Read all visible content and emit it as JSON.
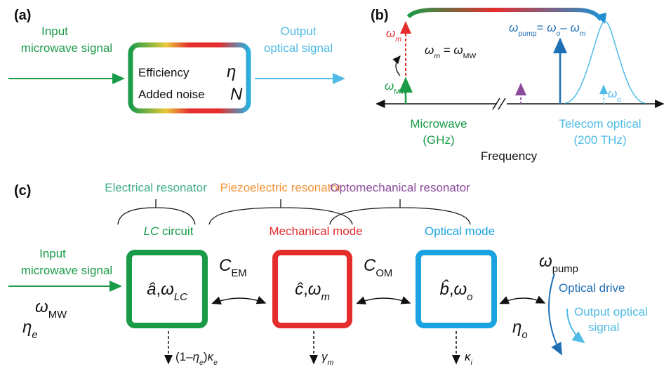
{
  "a": {
    "label": "(a)",
    "input": [
      "Input",
      "microwave signal"
    ],
    "efficiency": "Efficiency",
    "eta": "η",
    "noise": "Added noise",
    "N": "N",
    "output": [
      "Output",
      "optical signal"
    ]
  },
  "b": {
    "label": "(b)",
    "omega_m": [
      {
        "t": "ω",
        "it": true
      },
      {
        "t": "m",
        "sub": true,
        "it": true
      }
    ],
    "eq": [
      {
        "t": "ω",
        "it": true
      },
      {
        "t": "m",
        "sub": true,
        "it": true
      },
      {
        "t": " = "
      },
      {
        "t": "ω",
        "it": true
      },
      {
        "t": "MW",
        "sub": true
      }
    ],
    "omega_mw": [
      {
        "t": "ω",
        "it": true
      },
      {
        "t": "MW",
        "sub": true
      }
    ],
    "pump": [
      {
        "t": "ω",
        "it": true
      },
      {
        "t": "pump",
        "sub": true
      },
      {
        "t": "= "
      },
      {
        "t": "ω",
        "it": true
      },
      {
        "t": "o",
        "sub": true,
        "it": true
      },
      {
        "t": "– "
      },
      {
        "t": "ω",
        "it": true
      },
      {
        "t": "m",
        "sub": true,
        "it": true
      }
    ],
    "omega_o": [
      {
        "t": "ω",
        "it": true
      },
      {
        "t": "o",
        "sub": true,
        "it": true
      }
    ],
    "microwave": [
      "Microwave",
      "(GHz)"
    ],
    "telecom": [
      "Telecom optical",
      "(200 THz)"
    ],
    "frequency": "Frequency"
  },
  "c": {
    "label": "(c)",
    "electrical": "Electrical resonator",
    "piezo": "Piezoelectric resonator",
    "opto": "Optomechanical resonator",
    "lc": [
      {
        "t": "LC",
        "it": true
      },
      {
        "t": " circuit"
      }
    ],
    "mech": "Mechanical mode",
    "optical": "Optical mode",
    "input": [
      "Input",
      "microwave signal"
    ],
    "omega_mw": [
      {
        "t": "ω",
        "it": true
      },
      {
        "t": "MW",
        "sub": true
      }
    ],
    "eta_e": [
      {
        "t": "η",
        "it": true
      },
      {
        "t": "e",
        "sub": true,
        "it": true
      }
    ],
    "box1": [
      {
        "t": "â",
        "it": true
      },
      {
        "t": ","
      },
      {
        "t": "ω",
        "it": true
      },
      {
        "t": "LC",
        "sub": true,
        "it": true
      }
    ],
    "box2": [
      {
        "t": "ĉ",
        "it": true
      },
      {
        "t": ","
      },
      {
        "t": "ω",
        "it": true
      },
      {
        "t": "m",
        "sub": true,
        "it": true
      }
    ],
    "box3": [
      {
        "t": "b̂",
        "it": true
      },
      {
        "t": ","
      },
      {
        "t": "ω",
        "it": true
      },
      {
        "t": "o",
        "sub": true,
        "it": true
      }
    ],
    "c_em": [
      {
        "t": "C",
        "it": true
      },
      {
        "t": "EM",
        "sub": true
      }
    ],
    "c_om": [
      {
        "t": "C",
        "it": true
      },
      {
        "t": "OM",
        "sub": true
      }
    ],
    "eta_o": [
      {
        "t": "η",
        "it": true
      },
      {
        "t": "o",
        "sub": true,
        "it": true
      }
    ],
    "omega_pump": [
      {
        "t": "ω",
        "it": true
      },
      {
        "t": "pump",
        "sub": true
      }
    ],
    "drive": "Optical drive",
    "output": [
      "Output optical",
      "signal"
    ],
    "loss1": [
      {
        "t": "(1–"
      },
      {
        "t": "η",
        "it": true
      },
      {
        "t": "e",
        "sub": true,
        "it": true
      },
      {
        "t": ")"
      },
      {
        "t": "κ",
        "it": true
      },
      {
        "t": "e",
        "sub": true,
        "it": true
      }
    ],
    "loss2": [
      {
        "t": "γ",
        "it": true
      },
      {
        "t": "m",
        "sub": true,
        "it": true
      }
    ],
    "loss3": [
      {
        "t": "κ",
        "it": true
      },
      {
        "t": "i",
        "sub": true,
        "it": true
      }
    ]
  }
}
